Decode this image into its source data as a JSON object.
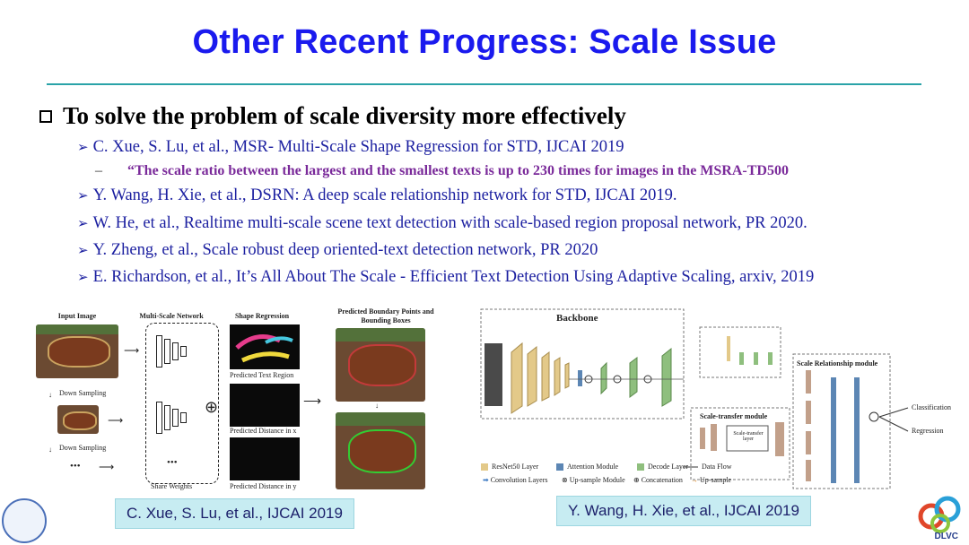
{
  "slide": {
    "title": "Other Recent Progress: Scale Issue",
    "main_bullet": "To solve the problem of scale diversity more effectively",
    "references": [
      "C. Xue, S. Lu, et al., MSR- Multi-Scale Shape Regression for STD, IJCAI 2019",
      "Y. Wang, H. Xie, et al., DSRN: A deep scale relationship network for STD, IJCAI 2019.",
      "W. He, et al., Realtime multi-scale scene text detection with scale-based region proposal network, PR 2020.",
      "Y. Zheng, et al., Scale robust deep oriented-text detection network, PR 2020",
      "E. Richardson, et al., It’s All About The Scale - Efficient Text Detection Using Adaptive Scaling, arxiv, 2019"
    ],
    "quote": "“The scale ratio between the largest and the smallest texts is up to 230 times for images in the MSRA-TD500",
    "quote_dash": "–"
  },
  "left_figure": {
    "input_image": "Input Image",
    "multi_scale_network": "Multi-Scale Network",
    "shape_regression": "Shape Regression",
    "predicted_boxes": "Predicted Boundary Points and Bounding Boxes",
    "down_sampling": "Down Sampling",
    "predicted_text_region": "Predicted Text Region",
    "predicted_distance_x": "Predicted Distance in x",
    "predicted_distance_y": "Predicted Distance in y",
    "share_weights": "Share Weights",
    "ellipsis": "•••",
    "caption": "C. Xue, S. Lu, et al., IJCAI 2019"
  },
  "right_figure": {
    "backbone": "Backbone",
    "scale_transfer_module": "Scale-transfer module",
    "scale_transfer_layer": "Scale-transfer layer",
    "scale_relationship_module": "Scale Relationship module",
    "classification": "Classification",
    "regression": "Regression",
    "legend": {
      "resnet": "ResNet50 Layer",
      "attention": "Attention Module",
      "decode": "Decode Layer",
      "data_flow": "Data Flow",
      "convolution": "Convolution Layers",
      "upsample_module": "Up-sample Module",
      "concatenation": "Concatenation",
      "upsample": "Up-sample"
    },
    "caption": "Y. Wang, H. Xie, et al., IJCAI 2019"
  },
  "logo": {
    "text": "DLVC"
  },
  "colors": {
    "title": "#1a1aee",
    "rule": "#2aa3a8",
    "reference": "#1b1fa0",
    "quote": "#7a2a9a",
    "caption_bg": "#c7ecf2",
    "resnet": "#e3c989",
    "decode": "#8fbf7e",
    "attention": "#5c86b4"
  }
}
